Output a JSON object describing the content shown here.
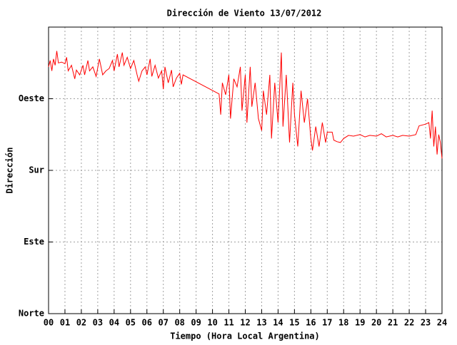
{
  "chart_data": {
    "type": "line",
    "title": "Dirección de Viento 13/07/2012",
    "x_label": "Tiempo (Hora Local Argentina)",
    "y_label": "Dirección",
    "xlim": [
      0,
      24
    ],
    "xticks": [
      {
        "value": 0,
        "label": "00"
      },
      {
        "value": 1,
        "label": "01"
      },
      {
        "value": 2,
        "label": "02"
      },
      {
        "value": 3,
        "label": "03"
      },
      {
        "value": 4,
        "label": "04"
      },
      {
        "value": 5,
        "label": "05"
      },
      {
        "value": 6,
        "label": "06"
      },
      {
        "value": 7,
        "label": "07"
      },
      {
        "value": 8,
        "label": "08"
      },
      {
        "value": 9,
        "label": "09"
      },
      {
        "value": 10,
        "label": "10"
      },
      {
        "value": 11,
        "label": "11"
      },
      {
        "value": 12,
        "label": "12"
      },
      {
        "value": 13,
        "label": "13"
      },
      {
        "value": 14,
        "label": "14"
      },
      {
        "value": 15,
        "label": "15"
      },
      {
        "value": 16,
        "label": "16"
      },
      {
        "value": 17,
        "label": "17"
      },
      {
        "value": 18,
        "label": "18"
      },
      {
        "value": 19,
        "label": "19"
      },
      {
        "value": 20,
        "label": "20"
      },
      {
        "value": 21,
        "label": "21"
      },
      {
        "value": 22,
        "label": "22"
      },
      {
        "value": 23,
        "label": "23"
      },
      {
        "value": 24,
        "label": "24"
      }
    ],
    "ylim": [
      0,
      360
    ],
    "yticks": [
      {
        "value": 0,
        "label": "Norte"
      },
      {
        "value": 90,
        "label": "Este"
      },
      {
        "value": 180,
        "label": "Sur"
      },
      {
        "value": 270,
        "label": "Oeste"
      }
    ],
    "grid": true,
    "color": "#ff0000",
    "x": [
      0.0,
      0.1,
      0.2,
      0.3,
      0.4,
      0.5,
      0.6,
      0.8,
      1.0,
      1.1,
      1.2,
      1.4,
      1.6,
      1.7,
      1.9,
      2.1,
      2.2,
      2.4,
      2.5,
      2.7,
      2.9,
      3.1,
      3.3,
      3.5,
      3.7,
      3.9,
      4.0,
      4.2,
      4.3,
      4.5,
      4.6,
      4.8,
      5.0,
      5.2,
      5.4,
      5.5,
      5.7,
      5.9,
      6.0,
      6.2,
      6.3,
      6.5,
      6.7,
      6.9,
      7.0,
      7.1,
      7.3,
      7.5,
      7.6,
      7.8,
      8.0,
      8.1,
      8.2,
      10.4,
      10.5,
      10.6,
      10.8,
      11.0,
      11.1,
      11.3,
      11.5,
      11.7,
      11.8,
      12.0,
      12.1,
      12.3,
      12.4,
      12.6,
      12.8,
      13.0,
      13.1,
      13.3,
      13.5,
      13.6,
      13.8,
      14.0,
      14.2,
      14.3,
      14.5,
      14.7,
      14.9,
      15.0,
      15.2,
      15.4,
      15.6,
      15.8,
      16.0,
      16.1,
      16.3,
      16.5,
      16.7,
      16.9,
      17.0,
      17.3,
      17.4,
      17.6,
      17.8,
      18.0,
      18.3,
      18.6,
      19.0,
      19.3,
      19.6,
      20.0,
      20.3,
      20.6,
      21.0,
      21.3,
      21.6,
      22.0,
      22.4,
      22.6,
      23.0,
      23.2,
      23.3,
      23.4,
      23.5,
      23.6,
      23.7,
      23.8,
      23.9,
      24.0
    ],
    "values": [
      310,
      318,
      305,
      320,
      312,
      330,
      315,
      316,
      314,
      322,
      305,
      312,
      295,
      306,
      300,
      312,
      300,
      318,
      305,
      310,
      298,
      320,
      300,
      305,
      308,
      318,
      305,
      326,
      310,
      328,
      312,
      322,
      308,
      318,
      300,
      292,
      305,
      310,
      300,
      320,
      298,
      312,
      296,
      305,
      282,
      310,
      290,
      306,
      285,
      296,
      302,
      288,
      300,
      276,
      250,
      290,
      275,
      300,
      245,
      295,
      285,
      310,
      255,
      300,
      240,
      310,
      260,
      290,
      245,
      230,
      280,
      250,
      300,
      220,
      290,
      240,
      328,
      235,
      300,
      215,
      290,
      250,
      210,
      280,
      240,
      270,
      220,
      205,
      235,
      210,
      240,
      215,
      228,
      228,
      218,
      216,
      215,
      220,
      224,
      223,
      225,
      222,
      224,
      223,
      226,
      222,
      224,
      222,
      224,
      223,
      225,
      236,
      238,
      240,
      220,
      255,
      210,
      235,
      200,
      225,
      215,
      195
    ]
  }
}
